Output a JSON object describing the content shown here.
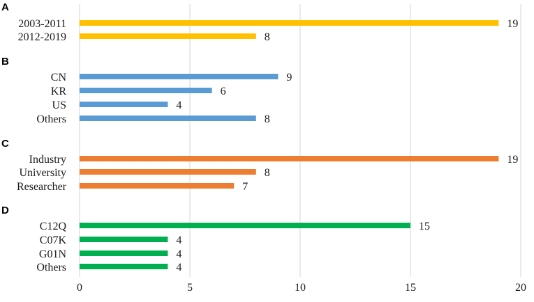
{
  "chart_data": {
    "type": "bar",
    "orientation": "horizontal",
    "xlim": [
      0,
      20
    ],
    "xticks": [
      0,
      5,
      10,
      15,
      20
    ],
    "grid": true,
    "panels": [
      {
        "label": "A",
        "color": "#FFC000",
        "categories": [
          "2003-2011",
          "2012-2019"
        ],
        "values": [
          19,
          8
        ]
      },
      {
        "label": "B",
        "color": "#5B9BD5",
        "categories": [
          "CN",
          "KR",
          "US",
          "Others"
        ],
        "values": [
          9,
          6,
          4,
          8
        ]
      },
      {
        "label": "C",
        "color": "#ED7D31",
        "categories": [
          "Industry",
          "University",
          "Researcher"
        ],
        "values": [
          19,
          8,
          7
        ]
      },
      {
        "label": "D",
        "color": "#00B050",
        "categories": [
          "C12Q",
          "C07K",
          "G01N",
          "Others"
        ],
        "values": [
          15,
          4,
          4,
          4
        ]
      }
    ]
  }
}
